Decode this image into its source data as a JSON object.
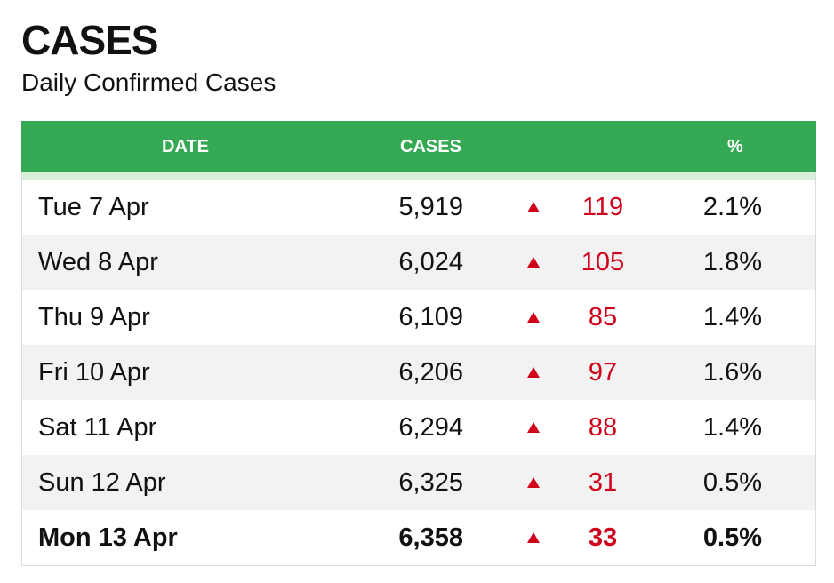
{
  "title": "CASES",
  "subtitle": "Daily Confirmed Cases",
  "table": {
    "headers": {
      "date": "DATE",
      "cases": "CASES",
      "pct": "%"
    },
    "rows": [
      {
        "date": "Tue 7 Apr",
        "cases": "5,919",
        "change": "119",
        "pct": "2.1%"
      },
      {
        "date": "Wed 8 Apr",
        "cases": "6,024",
        "change": "105",
        "pct": "1.8%"
      },
      {
        "date": "Thu 9 Apr",
        "cases": "6,109",
        "change": "85",
        "pct": "1.4%"
      },
      {
        "date": "Fri 10 Apr",
        "cases": "6,206",
        "change": "97",
        "pct": "1.6%"
      },
      {
        "date": "Sat 11 Apr",
        "cases": "6,294",
        "change": "88",
        "pct": "1.4%"
      },
      {
        "date": "Sun 12 Apr",
        "cases": "6,325",
        "change": "31",
        "pct": "0.5%"
      },
      {
        "date": "Mon 13 Apr",
        "cases": "6,358",
        "change": "33",
        "pct": "0.5%"
      }
    ],
    "change_icon": "triangle-up-icon"
  },
  "colors": {
    "header_bg": "#34a853",
    "header_accent": "#d7efd9",
    "increase": "#d0021b",
    "alt_row": "#f2f2f2"
  }
}
